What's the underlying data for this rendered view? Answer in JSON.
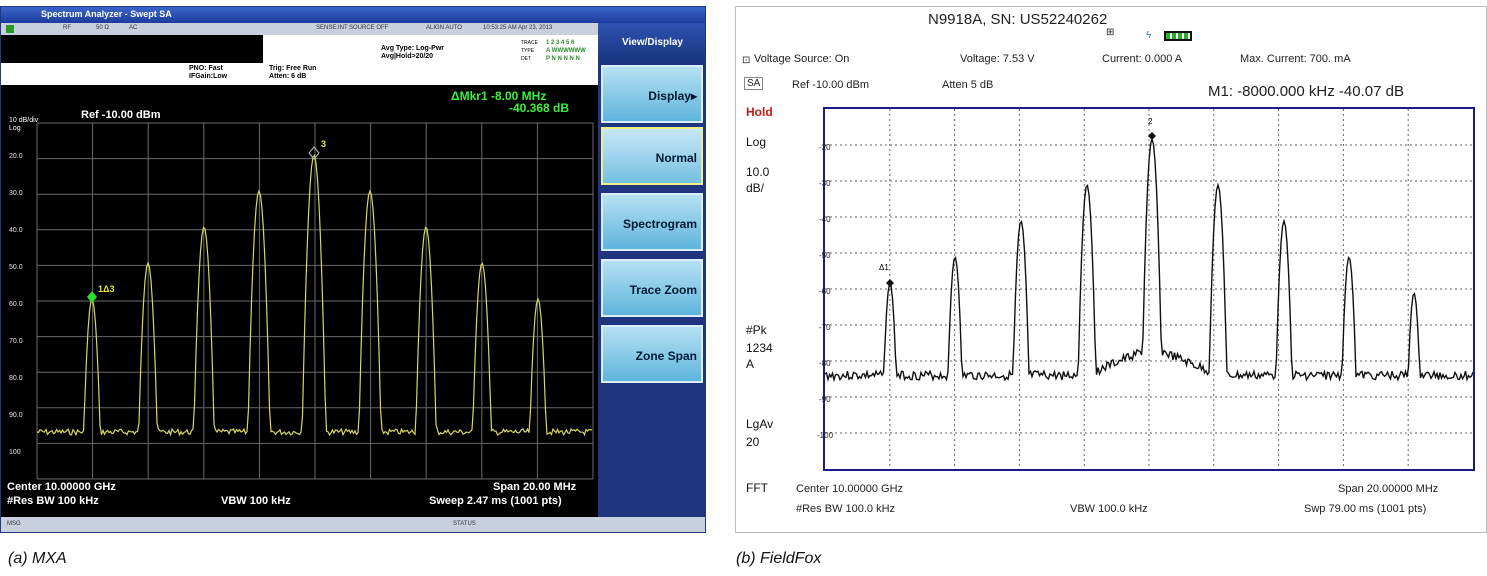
{
  "mxa": {
    "window_title": "Spectrum Analyzer - Swept SA",
    "strip": {
      "rf": "RF",
      "ohm": "50 Ω",
      "ac": "AC",
      "sense": "SENSE:INT",
      "source": "SOURCE OFF",
      "align": "ALIGN AUTO",
      "timestamp": "10:53:25 AM Apr 23, 2013"
    },
    "pno": "PNO: Fast",
    "ifgain": "IFGain:Low",
    "trig": "Trig: Free Run",
    "atten": "Atten: 6 dB",
    "avg_type": "Avg Type: Log-Pwr",
    "avg_hold": "Avg|Hold>20/20",
    "trace_lbl": "TRACE",
    "type_lbl": "TYPE",
    "det_lbl": "DET",
    "trace_val": "1 2 3 4 5 6",
    "type_val": "A WWWWWW",
    "det_val": "P N N N N N",
    "scale": "10 dB/div",
    "scale_mode": "Log",
    "ref": "Ref -10.00 dBm",
    "marker_line1": "ΔMkr1 -8.00 MHz",
    "marker_line2": "-40.368 dB",
    "marker1_label": "1Δ3",
    "marker3_label": "3",
    "y_labels": [
      "20.0",
      "30.0",
      "40.0",
      "50.0",
      "60.0",
      "70.0",
      "80.0",
      "90.0",
      "100"
    ],
    "center": "Center 10.00000 GHz",
    "res_bw": "#Res BW 100 kHz",
    "vbw": "VBW 100 kHz",
    "span": "Span 20.00 MHz",
    "sweep": "Sweep  2.47 ms (1001 pts)",
    "msg": "MSG",
    "status": "STATUS",
    "side_title": "View/Display",
    "softkeys": [
      "Display▸",
      "Normal",
      "Spectrogram",
      "Trace Zoom",
      "Zone Span"
    ],
    "trace_color": "#d8d860"
  },
  "fieldfox": {
    "title": "N9918A, SN: US52240262",
    "voltage_source": "Voltage Source:  On",
    "voltage": "Voltage: 7.53 V",
    "current": "Current: 0.000 A",
    "max_current": "Max. Current:   700. mA",
    "mode_badge": "SA",
    "ref": "Ref -10.00 dBm",
    "atten": "Atten 5 dB",
    "marker_readout": "M1:  -8000.000 kHz  -40.07 dB",
    "hold": "Hold",
    "log": "Log",
    "scale_line1": "10.0",
    "scale_line2": "dB/",
    "pk": "#Pk",
    "pk_traces": "1234",
    "pk_a": "A",
    "lgav": "LgAv",
    "lgav_n": "20",
    "fft": "FFT",
    "y_labels": [
      "-20",
      "-30",
      "-40",
      "-50",
      "-60",
      "-70",
      "-80",
      "-90",
      "-100"
    ],
    "marker1_label": "Δ1",
    "marker2_label": "2",
    "center": "Center 10.00000 GHz",
    "res_bw": "#Res BW 100.0 kHz",
    "vbw": "VBW 100.0 kHz",
    "span": "Span 20.00000 MHz",
    "sweep": "Swp 79.00 ms (1001 pts)",
    "grid_color": "#1a1a8a"
  },
  "captions": {
    "a": "(a) MXA",
    "b": "(b) FieldFox"
  }
}
